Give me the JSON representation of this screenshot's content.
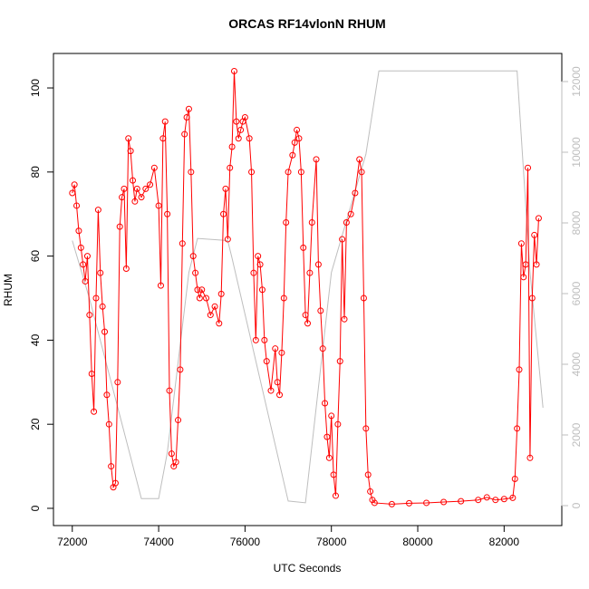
{
  "chart_data": {
    "type": "line",
    "title": "ORCAS RF14vlonN RHUM",
    "xlabel": "UTC Seconds",
    "ylabel": "RHUM",
    "xlim": [
      71564,
      83336
    ],
    "ylim": [
      -4.1,
      108.2
    ],
    "y2lim": [
      -564,
      12795
    ],
    "xticks": [
      72000,
      74000,
      76000,
      78000,
      80000,
      82000
    ],
    "yticks": [
      0,
      20,
      40,
      60,
      80,
      100
    ],
    "y2ticks": [
      0,
      2000,
      4000,
      6000,
      8000,
      10000,
      12000
    ],
    "series": [
      {
        "color": "#bebebe",
        "axis": "y2",
        "x": [
          72000,
          72400,
          73600,
          74000,
          74200,
          74700,
          74900,
          75600,
          75700,
          77000,
          77400,
          78000,
          78800,
          79100,
          82300,
          82600,
          82900
        ],
        "values": [
          7500,
          5850,
          200,
          200,
          1500,
          6600,
          7560,
          7500,
          7000,
          130,
          80,
          6600,
          9950,
          12300,
          12300,
          6600,
          2770
        ]
      },
      {
        "color": "#ff0000",
        "marker": "circle",
        "x": [
          72000,
          72050,
          72100,
          72150,
          72200,
          72250,
          72300,
          72350,
          72400,
          72450,
          72500,
          72550,
          72600,
          72650,
          72700,
          72750,
          72800,
          72850,
          72900,
          72950,
          73000,
          73050,
          73100,
          73150,
          73200,
          73250,
          73300,
          73350,
          73400,
          73450,
          73500,
          73600,
          73700,
          73800,
          73900,
          74000,
          74050,
          74100,
          74150,
          74200,
          74250,
          74300,
          74350,
          74400,
          74450,
          74500,
          74550,
          74600,
          74650,
          74700,
          74750,
          74800,
          74850,
          74900,
          74950,
          75000,
          75100,
          75200,
          75300,
          75400,
          75450,
          75500,
          75550,
          75600,
          75650,
          75700,
          75750,
          75800,
          75850,
          75900,
          75950,
          76000,
          76100,
          76150,
          76200,
          76250,
          76300,
          76350,
          76400,
          76450,
          76500,
          76600,
          76700,
          76750,
          76800,
          76850,
          76900,
          76950,
          77000,
          77100,
          77150,
          77200,
          77250,
          77300,
          77350,
          77400,
          77450,
          77500,
          77550,
          77650,
          77700,
          77750,
          77800,
          77850,
          77900,
          77950,
          78000,
          78050,
          78100,
          78150,
          78200,
          78250,
          78300,
          78350,
          78450,
          78550,
          78650,
          78700,
          78750,
          78800,
          78850,
          78900,
          78950,
          79000,
          79400,
          79800,
          80200,
          80600,
          81000,
          81400,
          81600,
          81800,
          82000,
          82200,
          82250,
          82300,
          82350,
          82400,
          82450,
          82500,
          82550,
          82600,
          82650,
          82700,
          82750,
          82800
        ],
        "values": [
          75,
          77,
          72,
          66,
          62,
          58,
          54,
          60,
          46,
          32,
          23,
          50,
          71,
          56,
          48,
          42,
          27,
          20,
          10,
          5,
          6,
          30,
          67,
          74,
          76,
          57,
          88,
          85,
          78,
          73,
          76,
          74,
          76,
          77,
          81,
          72,
          53,
          88,
          92,
          70,
          28,
          13,
          10,
          11,
          21,
          33,
          63,
          89,
          93,
          95,
          80,
          60,
          56,
          52,
          50,
          52,
          50,
          46,
          48,
          44,
          51,
          70,
          76,
          64,
          81,
          86,
          104,
          92,
          88,
          90,
          92,
          93,
          88,
          80,
          56,
          40,
          60,
          58,
          52,
          40,
          35,
          28,
          38,
          30,
          27,
          37,
          50,
          68,
          80,
          84,
          87,
          90,
          88,
          80,
          62,
          46,
          44,
          56,
          68,
          83,
          58,
          47,
          38,
          25,
          17,
          12,
          22,
          8,
          3,
          20,
          35,
          64,
          45,
          68,
          70,
          75,
          83,
          80,
          50,
          19,
          8,
          4,
          2,
          1.3,
          1,
          1.2,
          1.3,
          1.5,
          1.7,
          2,
          2.6,
          2,
          2.2,
          2.5,
          7,
          19,
          33,
          63,
          55,
          58,
          81,
          12,
          50,
          65,
          58,
          69
        ]
      }
    ]
  }
}
